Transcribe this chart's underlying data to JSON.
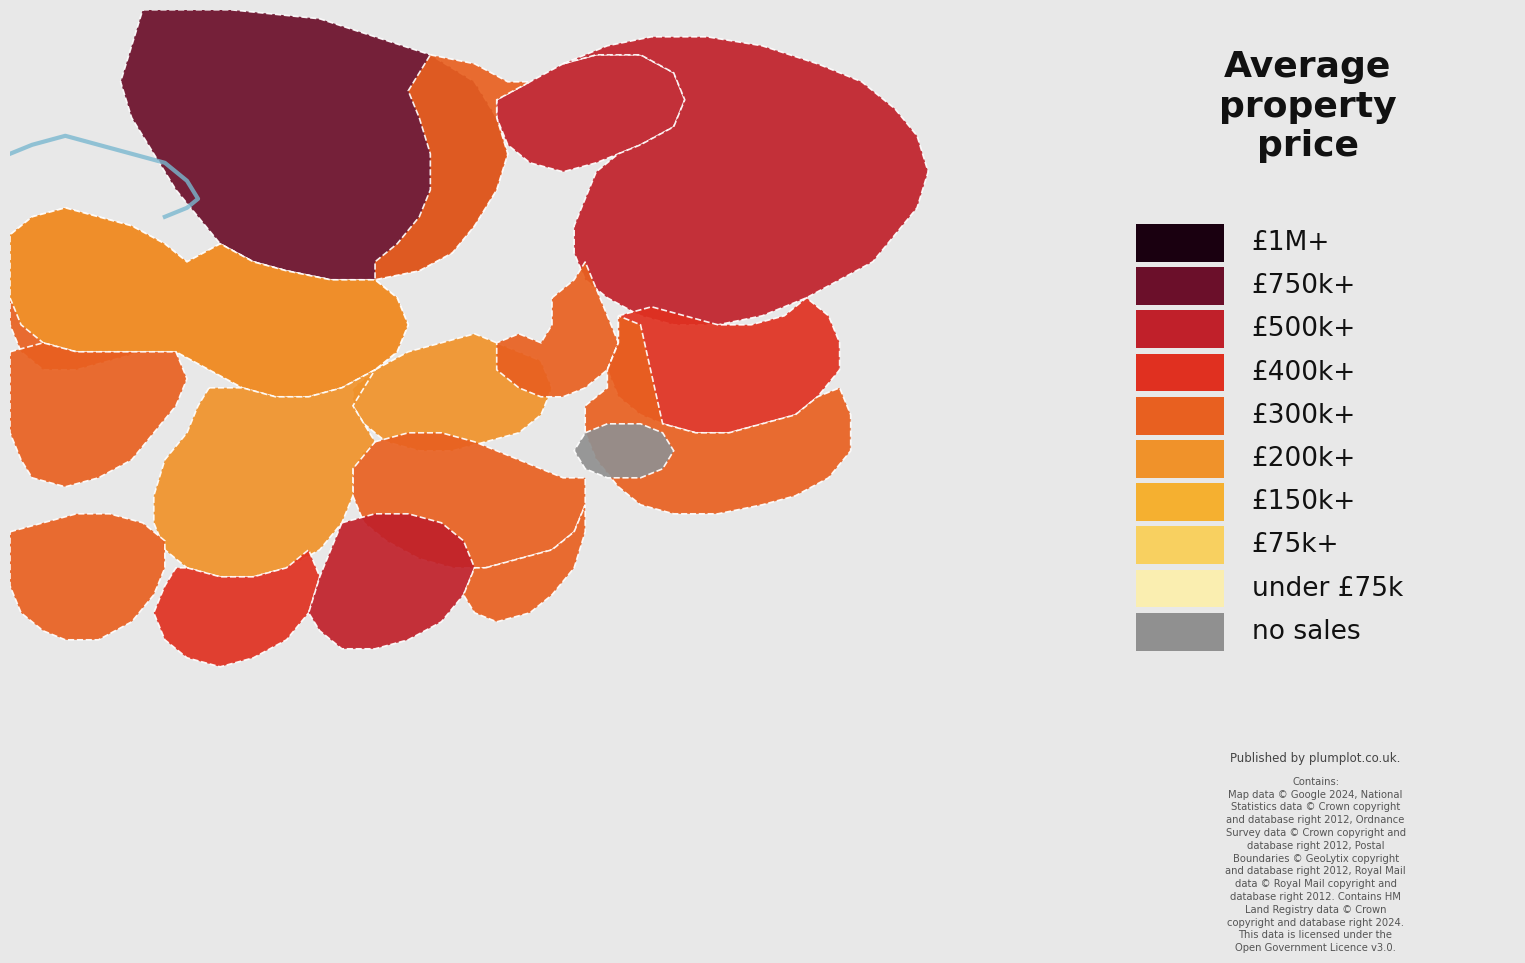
{
  "title": "Average\nproperty\nprice",
  "legend_labels": [
    "£1M+",
    "£750k+",
    "£500k+",
    "£400k+",
    "£300k+",
    "£200k+",
    "£150k+",
    "£75k+",
    "under £75k",
    "no sales"
  ],
  "legend_colors": [
    "#1a0010",
    "#6b0f2a",
    "#c0202a",
    "#e03020",
    "#e86020",
    "#f0922a",
    "#f5b030",
    "#f8d060",
    "#faeeb0",
    "#909090"
  ],
  "background_color": "#e8e8e8",
  "map_bg_color": "#e2eed8",
  "title_fontsize": 26,
  "legend_fontsize": 19,
  "publisher_text": "Published by plumplot.co.uk.",
  "copyright_text": "Contains:\nMap data © Google 2024, National\nStatistics data © Crown copyright\nand database right 2012, Ordnance\nSurvey data © Crown copyright and\ndatabase right 2012, Postal\nBoundaries © GeoLytix copyright\nand database right 2012, Royal Mail\ndata © Royal Mail copyright and\ndatabase right 2012. Contains HM\nLand Registry data © Crown\ncopyright and database right 2024.\nThis data is licensed under the\nOpen Government Licence v3.0."
}
